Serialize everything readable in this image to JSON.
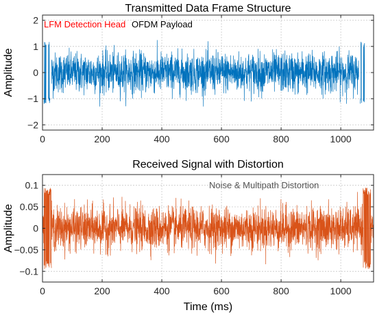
{
  "chart_data": [
    {
      "type": "line",
      "title": "Transmitted Data Frame Structure",
      "xlabel": "",
      "ylabel": "Amplitude",
      "xlim": [
        0,
        1110
      ],
      "ylim": [
        -2.2,
        2.2
      ],
      "xticks": [
        0,
        200,
        400,
        600,
        800,
        1000
      ],
      "yticks": [
        -2,
        -1,
        0,
        1,
        2
      ],
      "grid": true,
      "annotations": [
        {
          "text": "LFM Detection Head",
          "color": "#ff0000",
          "x": 0
        },
        {
          "text": "OFDM Payload",
          "color": "#000000",
          "x": 300
        }
      ],
      "series": [
        {
          "color": "#0072BD",
          "segments": [
            {
              "x_start": 5,
              "x_end": 12,
              "amplitude": 1.2,
              "kind": "lfm"
            },
            {
              "x_start": 20,
              "x_end": 25,
              "amplitude": 1.2,
              "kind": "lfm"
            },
            {
              "x_start": 30,
              "x_end": 1060,
              "amplitude": 1.0,
              "kind": "noise"
            },
            {
              "x_start": 1065,
              "x_end": 1070,
              "amplitude": 1.2,
              "kind": "lfm"
            },
            {
              "x_start": 1075,
              "x_end": 1080,
              "amplitude": 1.2,
              "kind": "lfm"
            }
          ]
        }
      ]
    },
    {
      "type": "line",
      "title": "Received Signal with Distortion",
      "xlabel": "Time (ms)",
      "ylabel": "Amplitude",
      "xlim": [
        0,
        1110
      ],
      "ylim": [
        -0.125,
        0.125
      ],
      "xticks": [
        0,
        200,
        400,
        600,
        800,
        1000
      ],
      "yticks": [
        -0.1,
        -0.05,
        0,
        0.05,
        0.1
      ],
      "ytick_labels": [
        "−0.1",
        "−0.05",
        "0",
        "0.05",
        "0.1"
      ],
      "grid": true,
      "annotations": [
        {
          "text": "Noise & Multipath Distortion",
          "color": "#555555",
          "x": 560
        }
      ],
      "series": [
        {
          "color": "#D95319",
          "segments": [
            {
              "x_start": 0,
              "x_end": 5,
              "amplitude": 0.06,
              "kind": "noise"
            },
            {
              "x_start": 5,
              "x_end": 30,
              "amplitude": 0.095,
              "kind": "lfm"
            },
            {
              "x_start": 30,
              "x_end": 1075,
              "amplitude": 0.065,
              "kind": "noise"
            },
            {
              "x_start": 1075,
              "x_end": 1100,
              "amplitude": 0.095,
              "kind": "lfm"
            },
            {
              "x_start": 1100,
              "x_end": 1110,
              "amplitude": 0.06,
              "kind": "noise"
            }
          ]
        }
      ]
    }
  ]
}
